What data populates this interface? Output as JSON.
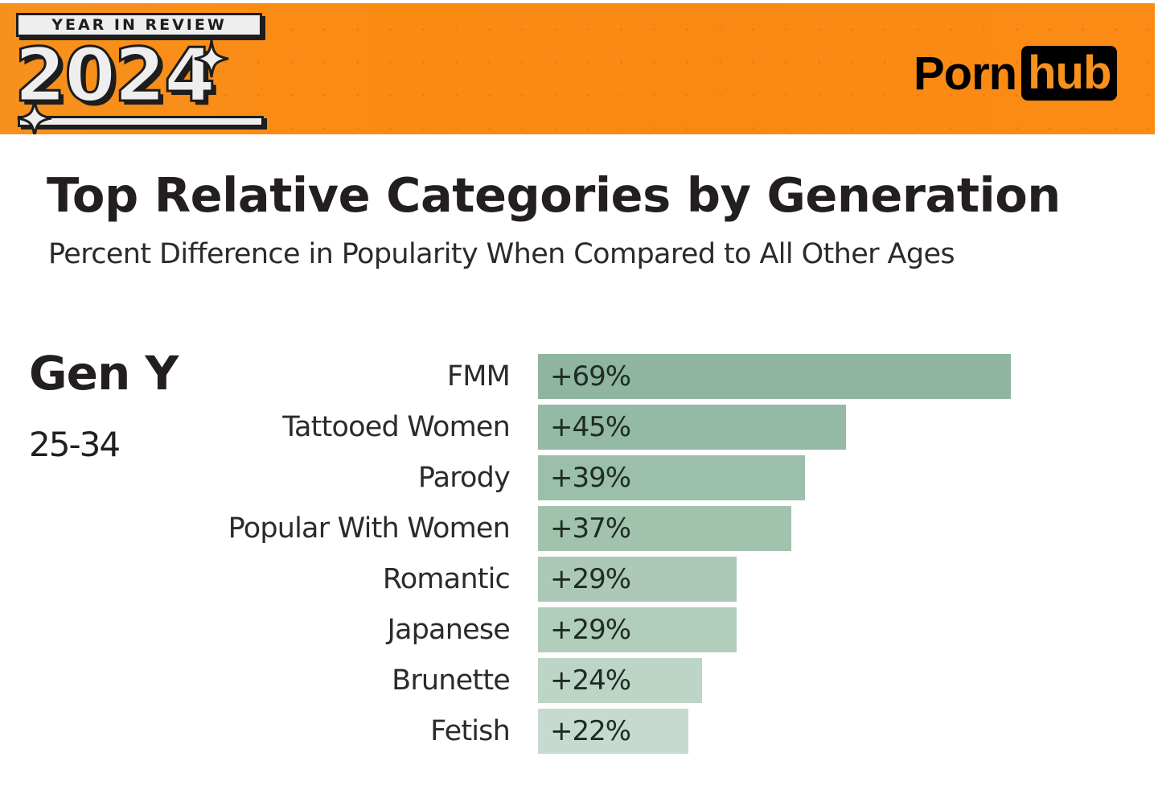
{
  "banner": {
    "badge_top": "YEAR IN REVIEW",
    "badge_year": "2024",
    "logo_left": "Porn",
    "logo_right": "hub",
    "colors": {
      "background": "#f7911e",
      "logo_box": "#000000",
      "badge_fill": "#eeeeee",
      "badge_outline": "#1d1d1d"
    }
  },
  "header": {
    "title": "Top Relative Categories by Generation",
    "subtitle": "Percent Difference in Popularity When Compared to All Other Ages"
  },
  "generation": {
    "name": "Gen Y",
    "age_range": "25-34"
  },
  "chart_data": {
    "type": "bar",
    "orientation": "horizontal",
    "title": "Top Relative Categories by Generation",
    "subtitle": "Percent Difference in Popularity When Compared to All Other Ages",
    "group": "Gen Y (25-34)",
    "xlabel": "",
    "ylabel": "",
    "grid": false,
    "legend": null,
    "categories": [
      "FMM",
      "Tattooed Women",
      "Parody",
      "Popular With Women",
      "Romantic",
      "Japanese",
      "Brunette",
      "Fetish"
    ],
    "values": [
      69,
      45,
      39,
      37,
      29,
      29,
      24,
      22
    ],
    "labels": [
      "+69%",
      "+45%",
      "+39%",
      "+37%",
      "+29%",
      "+29%",
      "+24%",
      "+22%"
    ],
    "bar_colors": [
      "#8fb5a1",
      "#94b9a5",
      "#9bbfaa",
      "#a1c3ae",
      "#abc9b6",
      "#b1cdbb",
      "#bcd5c6",
      "#c5dbcf"
    ],
    "unit": "%"
  }
}
